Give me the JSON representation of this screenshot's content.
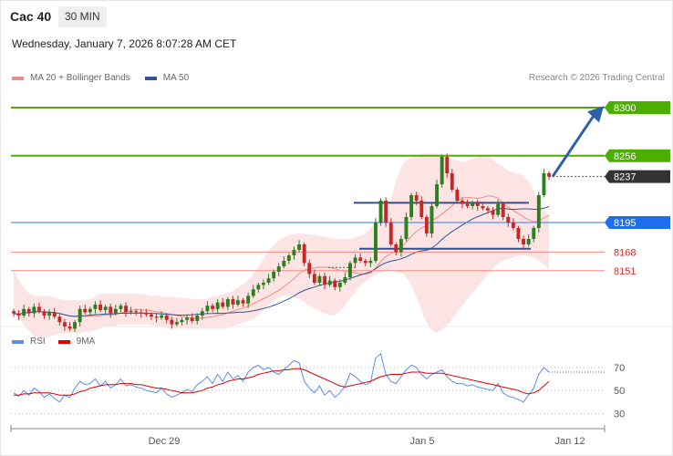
{
  "header": {
    "title": "Cac 40",
    "timeframe": "30 MIN",
    "datetime": "Wednesday, January 7, 2026 8:07:28 AM CET",
    "copyright": "Research © 2026 Trading Central"
  },
  "legend": [
    {
      "label": "MA 20 + Bollinger Bands",
      "color": "#f28b82"
    },
    {
      "label": "MA 50",
      "color": "#2f5597"
    }
  ],
  "rsi_legend": [
    {
      "label": "RSI",
      "color": "#5b8def"
    },
    {
      "label": "9MA",
      "color": "#e00000"
    }
  ],
  "colors": {
    "up": "#2e7d1e",
    "down": "#c62828",
    "bollinger_fill": "#fde4e4",
    "resistance": "#4caf00",
    "support_line": "#f28b82",
    "pivot": "#5b8def",
    "current": "#333333",
    "arrow": "#2f5fa8",
    "channel": "#2f4f8f"
  },
  "chart_data": [
    {
      "type": "candlestick",
      "ylim": [
        8105,
        8315
      ],
      "x_ticks": [
        "Dec 29",
        "Jan 5",
        "Jan 12"
      ],
      "levels": [
        {
          "value": 8300,
          "label": "8300",
          "kind": "resistance"
        },
        {
          "value": 8256,
          "label": "8256",
          "kind": "resistance"
        },
        {
          "value": 8237,
          "label": "8237",
          "kind": "current"
        },
        {
          "value": 8195,
          "label": "8195",
          "kind": "pivot"
        },
        {
          "value": 8168,
          "label": "8168",
          "kind": "support"
        },
        {
          "value": 8151,
          "label": "8151",
          "kind": "support"
        }
      ],
      "closes": [
        8112,
        8110,
        8116,
        8112,
        8118,
        8114,
        8110,
        8113,
        8109,
        8104,
        8100,
        8098,
        8104,
        8116,
        8113,
        8116,
        8120,
        8115,
        8118,
        8112,
        8116,
        8119,
        8113,
        8114,
        8113,
        8112,
        8111,
        8109,
        8108,
        8110,
        8106,
        8102,
        8104,
        8106,
        8108,
        8105,
        8110,
        8114,
        8119,
        8116,
        8122,
        8118,
        8125,
        8120,
        8124,
        8121,
        8128,
        8134,
        8138,
        8140,
        8144,
        8150,
        8155,
        8160,
        8165,
        8170,
        8175,
        8158,
        8148,
        8140,
        8146,
        8138,
        8142,
        8136,
        8140,
        8145,
        8158,
        8163,
        8160,
        8158,
        8160,
        8195,
        8215,
        8195,
        8175,
        8168,
        8180,
        8200,
        8220,
        8215,
        8200,
        8185,
        8210,
        8230,
        8255,
        8240,
        8225,
        8215,
        8212,
        8210,
        8213,
        8210,
        8208,
        8206,
        8202,
        8212,
        8200,
        8195,
        8190,
        8180,
        8175,
        8180,
        8190,
        8220,
        8240,
        8237
      ],
      "bands": {
        "upper": [
          8152,
          8140,
          8132,
          8128,
          8128,
          8128,
          8127,
          8125,
          8124,
          8124,
          8124,
          8124,
          8126,
          8130,
          8130,
          8130,
          8130,
          8130,
          8130,
          8130,
          8129,
          8128,
          8128,
          8127,
          8127,
          8126,
          8126,
          8125,
          8125,
          8125,
          8127,
          8128,
          8130,
          8132,
          8136,
          8140,
          8146,
          8154,
          8164,
          8172,
          8178,
          8182,
          8184,
          8185,
          8185,
          8184,
          8183,
          8182,
          8181,
          8180,
          8180,
          8180,
          8182,
          8184,
          8190,
          8196,
          8202,
          8214,
          8236,
          8250,
          8254,
          8256,
          8258,
          8258,
          8258,
          8256,
          8254,
          8252,
          8250,
          8252,
          8255,
          8256,
          8255,
          8250,
          8246,
          8242,
          8240,
          8238,
          8232,
          8220,
          8210,
          8200
        ],
        "lower": [
          8110,
          8106,
          8098,
          8092,
          8090,
          8090,
          8092,
          8094,
          8094,
          8094,
          8094,
          8095,
          8096,
          8098,
          8100,
          8100,
          8102,
          8102,
          8102,
          8102,
          8102,
          8101,
          8100,
          8099,
          8098,
          8098,
          8098,
          8098,
          8098,
          8098,
          8098,
          8098,
          8098,
          8100,
          8102,
          8104,
          8106,
          8110,
          8116,
          8122,
          8126,
          8128,
          8128,
          8126,
          8122,
          8118,
          8115,
          8112,
          8110,
          8112,
          8118,
          8126,
          8134,
          8140,
          8145,
          8148,
          8150,
          8152,
          8150,
          8148,
          8140,
          8126,
          8110,
          8098,
          8094,
          8098,
          8104,
          8112,
          8120,
          8128,
          8135,
          8142,
          8150,
          8156,
          8160,
          8162,
          8164,
          8165,
          8164,
          8162,
          8158,
          8152
        ]
      }
    },
    {
      "type": "line",
      "ylim": [
        20,
        85
      ],
      "y_ticks": [
        30,
        50,
        70
      ],
      "series": [
        {
          "name": "RSI",
          "values": [
            48,
            45,
            50,
            46,
            52,
            49,
            44,
            47,
            43,
            40,
            46,
            44,
            52,
            58,
            55,
            56,
            60,
            54,
            58,
            52,
            55,
            60,
            54,
            55,
            53,
            52,
            50,
            49,
            48,
            52,
            47,
            44,
            46,
            48,
            51,
            49,
            55,
            58,
            62,
            56,
            64,
            58,
            66,
            60,
            63,
            58,
            66,
            70,
            72,
            68,
            70,
            66,
            64,
            68,
            72,
            76,
            74,
            58,
            52,
            48,
            54,
            46,
            50,
            44,
            48,
            54,
            65,
            62,
            58,
            55,
            57,
            78,
            82,
            64,
            58,
            56,
            62,
            68,
            72,
            70,
            64,
            60,
            64,
            66,
            68,
            62,
            58,
            56,
            56,
            54,
            55,
            53,
            52,
            51,
            50,
            56,
            48,
            45,
            44,
            42,
            40,
            46,
            52,
            64,
            70,
            66
          ]
        },
        {
          "name": "9MA",
          "values": [
            46,
            46,
            47,
            47,
            48,
            48,
            48,
            48,
            47,
            46,
            46,
            46,
            47,
            49,
            50,
            52,
            53,
            54,
            55,
            55,
            55,
            56,
            56,
            56,
            55,
            55,
            54,
            53,
            52,
            52,
            51,
            50,
            49,
            48,
            48,
            48,
            49,
            50,
            52,
            53,
            55,
            56,
            58,
            59,
            60,
            60,
            61,
            62,
            64,
            65,
            66,
            67,
            67,
            68,
            68,
            69,
            69,
            68,
            66,
            64,
            62,
            60,
            58,
            56,
            54,
            53,
            54,
            55,
            56,
            57,
            58,
            60,
            62,
            63,
            64,
            64,
            64,
            65,
            66,
            66,
            66,
            65,
            65,
            65,
            65,
            64,
            63,
            62,
            61,
            60,
            59,
            58,
            57,
            56,
            55,
            54,
            53,
            52,
            51,
            50,
            48,
            47,
            48,
            50,
            54,
            58
          ]
        }
      ]
    }
  ]
}
